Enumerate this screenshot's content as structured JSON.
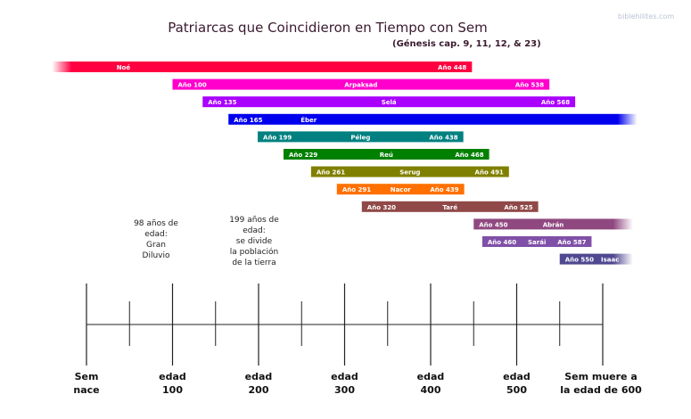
{
  "title": "Patriarcas que Coincidieron en Tiempo con Sem",
  "subtitle": "(Génesis cap. 9, 11, 12, & 23)",
  "watermark": "biblehilites.com",
  "patriarchs": [
    {
      "name": "Noé",
      "start": -40,
      "end": 448,
      "start_label": "",
      "end_label": "Año 448",
      "color": "#ff0040",
      "fade_left": true,
      "fade_right": false
    },
    {
      "name": "Arpaksad",
      "start": 100,
      "end": 538,
      "start_label": "Año 100",
      "end_label": "Año 538",
      "color": "#ff00cc",
      "fade_left": false,
      "fade_right": false
    },
    {
      "name": "Selá",
      "start": 135,
      "end": 568,
      "start_label": "Año 135",
      "end_label": "Año 568",
      "color": "#aa00ff",
      "fade_left": false,
      "fade_right": false
    },
    {
      "name": "Éber",
      "start": 165,
      "end": 640,
      "start_label": "Año 165",
      "end_label": "",
      "color": "#0000ee",
      "fade_left": false,
      "fade_right": true
    },
    {
      "name": "Péleg",
      "start": 199,
      "end": 438,
      "start_label": "Año 199",
      "end_label": "Año 438",
      "color": "#008080",
      "fade_left": false,
      "fade_right": false
    },
    {
      "name": "Reú",
      "start": 229,
      "end": 468,
      "start_label": "Año 229",
      "end_label": "Año 468",
      "color": "#008000",
      "fade_left": false,
      "fade_right": false
    },
    {
      "name": "Serug",
      "start": 261,
      "end": 491,
      "start_label": "Año 261",
      "end_label": "Año 491",
      "color": "#808000",
      "fade_left": false,
      "fade_right": false
    },
    {
      "name": "Nacor",
      "start": 291,
      "end": 439,
      "start_label": "Año 291",
      "end_label": "Año 439",
      "color": "#ff7000",
      "fade_left": false,
      "fade_right": false
    },
    {
      "name": "Taré",
      "start": 320,
      "end": 525,
      "start_label": "Año 320",
      "end_label": "Año 525",
      "color": "#904848",
      "fade_left": false,
      "fade_right": false
    },
    {
      "name": "Abrán",
      "start": 450,
      "end": 635,
      "start_label": "Año 450",
      "end_label": "",
      "color": "#904880",
      "fade_left": false,
      "fade_right": true
    },
    {
      "name": "Sarái",
      "start": 460,
      "end": 587,
      "start_label": "Año 460",
      "end_label": "Año 587",
      "color": "#8050a8",
      "fade_left": false,
      "fade_right": false
    },
    {
      "name": "Isaac",
      "start": 550,
      "end": 635,
      "start_label": "Año 550",
      "end_label": "",
      "color": "#504890",
      "fade_left": false,
      "fade_right": true
    }
  ],
  "notes": [
    {
      "lines": [
        "98 años de edad:",
        "Gran",
        "Diluvio"
      ]
    },
    {
      "lines": [
        "199 años de edad:",
        "se divide",
        "la población",
        "de la tierra"
      ]
    }
  ],
  "axis": {
    "range": [
      0,
      600
    ],
    "major_ticks": [
      0,
      100,
      200,
      300,
      400,
      500,
      600
    ],
    "minor_ticks": [
      50,
      150,
      250,
      350,
      450,
      550
    ],
    "labels": [
      [
        "Sem",
        "nace"
      ],
      [
        "edad",
        "100"
      ],
      [
        "edad",
        "200"
      ],
      [
        "edad",
        "300"
      ],
      [
        "edad",
        "400"
      ],
      [
        "edad",
        "500"
      ],
      [
        "Sem muere a",
        "la edad de 600"
      ]
    ]
  }
}
